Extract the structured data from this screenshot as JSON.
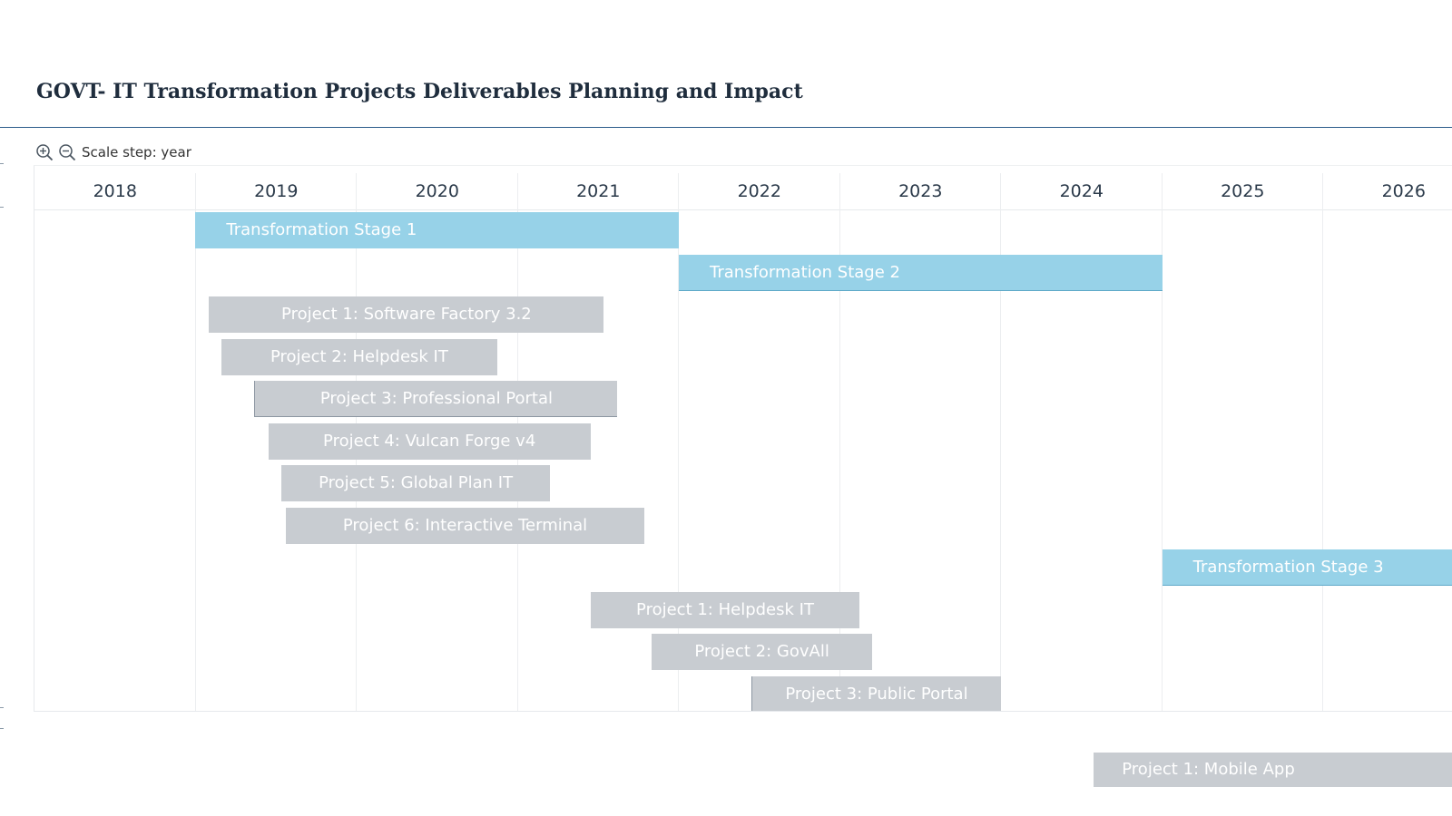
{
  "title": "GOVT- IT Transformation Projects Deliverables Planning and Impact",
  "toolbar": {
    "zoom_in_icon": "zoom-in-icon",
    "zoom_out_icon": "zoom-out-icon",
    "scale_label": "Scale step: year"
  },
  "colors": {
    "stage": "#97d2e8",
    "project": "#c8ccd1",
    "title_rule": "#2b5c8a"
  },
  "timeline": {
    "start": "2018-01-01",
    "years": [
      "2018",
      "2019",
      "2020",
      "2021",
      "2022",
      "2023",
      "2024",
      "2025",
      "2026"
    ]
  },
  "tasks": [
    {
      "label": "Transformation Stage 1",
      "type": "stage",
      "start": "2019-01-01",
      "end": "2022-01-01"
    },
    {
      "label": "Transformation Stage 2",
      "type": "stage",
      "start": "2022-01-01",
      "end": "2025-01-01"
    },
    {
      "label": "Project 1: Software Factory 3.2",
      "type": "project",
      "start": "2019-02-01",
      "end": "2021-07-15"
    },
    {
      "label": "Project 2: Helpdesk IT",
      "type": "project",
      "start": "2019-03-01",
      "end": "2020-11-15"
    },
    {
      "label": "Project 3: Professional Portal",
      "type": "project",
      "start": "2019-05-15",
      "end": "2021-08-15"
    },
    {
      "label": "Project 4: Vulcan Forge v4",
      "type": "project",
      "start": "2019-06-15",
      "end": "2021-06-15"
    },
    {
      "label": "Project 5: Global Plan IT",
      "type": "project",
      "start": "2019-07-15",
      "end": "2021-03-15"
    },
    {
      "label": "Project 6: Interactive Terminal",
      "type": "project",
      "start": "2019-07-25",
      "end": "2021-10-15"
    },
    {
      "label": "Transformation Stage 3",
      "type": "stage",
      "start": "2025-01-01",
      "end": "2027-01-01"
    },
    {
      "label": "Project 1: Helpdesk IT",
      "type": "project",
      "start": "2021-06-15",
      "end": "2023-02-15"
    },
    {
      "label": "Project 2: GovAll",
      "type": "project",
      "start": "2021-11-01",
      "end": "2023-03-15"
    },
    {
      "label": "Project 3: Public Portal",
      "type": "project",
      "start": "2022-06-15",
      "end": "2024-01-01"
    }
  ],
  "outside_task": {
    "label": "Project 1: Mobile App",
    "type": "project",
    "start": "2024-08-01",
    "end": "2027-01-01"
  }
}
